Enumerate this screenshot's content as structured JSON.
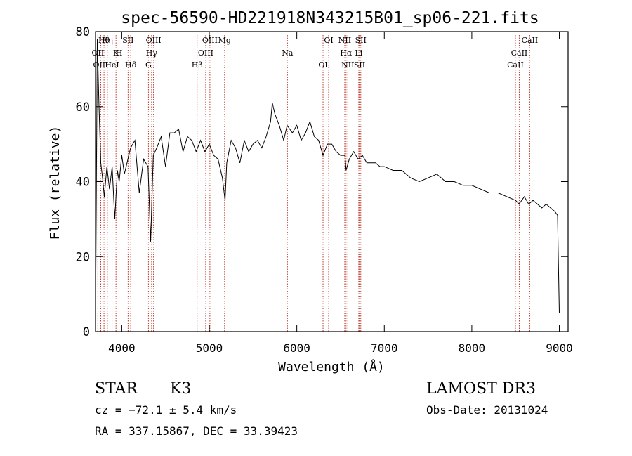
{
  "chart_data": {
    "type": "line",
    "title": "spec-56590-HD221918N343215B01_sp06-221.fits",
    "xlabel": "Wavelength (Å)",
    "ylabel": "Flux (relative)",
    "xlim": [
      3700,
      9100
    ],
    "ylim": [
      0,
      80
    ],
    "x_ticks": [
      4000,
      5000,
      6000,
      7000,
      8000,
      9000
    ],
    "y_ticks": [
      0,
      20,
      40,
      60,
      80
    ],
    "grid": false,
    "series": [
      {
        "x": [
          3700,
          3720,
          3740,
          3760,
          3780,
          3800,
          3830,
          3860,
          3890,
          3920,
          3950,
          3970,
          4000,
          4030,
          4060,
          4100,
          4150,
          4200,
          4250,
          4300,
          4330,
          4360,
          4400,
          4450,
          4500,
          4550,
          4600,
          4650,
          4700,
          4750,
          4800,
          4850,
          4900,
          4950,
          5000,
          5050,
          5100,
          5150,
          5180,
          5200,
          5250,
          5300,
          5350,
          5400,
          5450,
          5500,
          5550,
          5600,
          5650,
          5700,
          5720,
          5750,
          5800,
          5850,
          5890,
          5950,
          6000,
          6050,
          6100,
          6150,
          6200,
          6250,
          6300,
          6350,
          6400,
          6450,
          6500,
          6550,
          6563,
          6600,
          6650,
          6700,
          6750,
          6800,
          6850,
          6900,
          6950,
          7000,
          7100,
          7200,
          7300,
          7400,
          7500,
          7600,
          7700,
          7800,
          7900,
          8000,
          8100,
          8200,
          8300,
          8400,
          8500,
          8540,
          8600,
          8650,
          8700,
          8750,
          8800,
          8850,
          8900,
          8950,
          8980,
          9000
        ],
        "y": [
          0,
          78,
          60,
          45,
          41,
          36,
          44,
          38,
          44,
          30,
          43,
          40,
          47,
          42,
          45,
          49,
          51,
          37,
          46,
          44,
          24,
          47,
          49,
          52,
          44,
          53,
          53,
          54,
          48,
          52,
          51,
          48,
          51,
          48,
          50,
          47,
          46,
          41,
          35,
          45,
          51,
          49,
          45,
          51,
          48,
          50,
          51,
          49,
          52,
          56,
          61,
          58,
          55,
          51,
          55,
          53,
          55,
          51,
          53,
          56,
          52,
          51,
          47,
          50,
          50,
          48,
          47,
          47,
          43,
          46,
          48,
          46,
          47,
          45,
          45,
          45,
          44,
          44,
          43,
          43,
          41,
          40,
          41,
          42,
          40,
          40,
          39,
          39,
          38,
          37,
          37,
          36,
          35,
          34,
          36,
          34,
          35,
          34,
          33,
          34,
          33,
          32,
          31,
          5
        ]
      }
    ],
    "lines": [
      {
        "label": "Hθ",
        "x": 3797
      },
      {
        "label": "K",
        "x": 3934
      },
      {
        "label": "Hδ",
        "x": 4102
      },
      {
        "label": "OIII",
        "x": 4363
      },
      {
        "label": "OII",
        "x": 3727
      },
      {
        "label": "HeI",
        "x": 3889
      },
      {
        "label": "SII",
        "x": 4072
      },
      {
        "label": "Hγ",
        "x": 4341
      },
      {
        "label": "OIII",
        "x": 3760
      },
      {
        "label": "Hη",
        "x": 3835
      },
      {
        "label": "H",
        "x": 3969
      },
      {
        "label": "G",
        "x": 4305
      },
      {
        "label": "OIII",
        "x": 5007
      },
      {
        "label": "OIII",
        "x": 4959
      },
      {
        "label": "Hβ",
        "x": 4861
      },
      {
        "label": "Mg",
        "x": 5175
      },
      {
        "label": "Na",
        "x": 5893
      },
      {
        "label": "OI",
        "x": 6300
      },
      {
        "label": "OI",
        "x": 6364
      },
      {
        "label": "Hα",
        "x": 6563
      },
      {
        "label": "SII",
        "x": 6717
      },
      {
        "label": "NII",
        "x": 6548
      },
      {
        "label": "Li",
        "x": 6708
      },
      {
        "label": "NII",
        "x": 6583
      },
      {
        "label": "SII",
        "x": 6731
      },
      {
        "label": "CaII",
        "x": 8542
      },
      {
        "label": "CaII",
        "x": 8498
      },
      {
        "label": "CaII",
        "x": 8662
      }
    ]
  },
  "info": {
    "class": "STAR",
    "subclass": "K3",
    "survey": "LAMOST DR3",
    "cz": "cz = −72.1 ± 5.4 km/s",
    "obs_date": "Obs-Date: 20131024",
    "coords": "RA = 337.15867, DEC =  33.39423"
  },
  "colors": {
    "spectrum": "#000000",
    "line_markers": "#c0392b",
    "axes": "#000000"
  }
}
